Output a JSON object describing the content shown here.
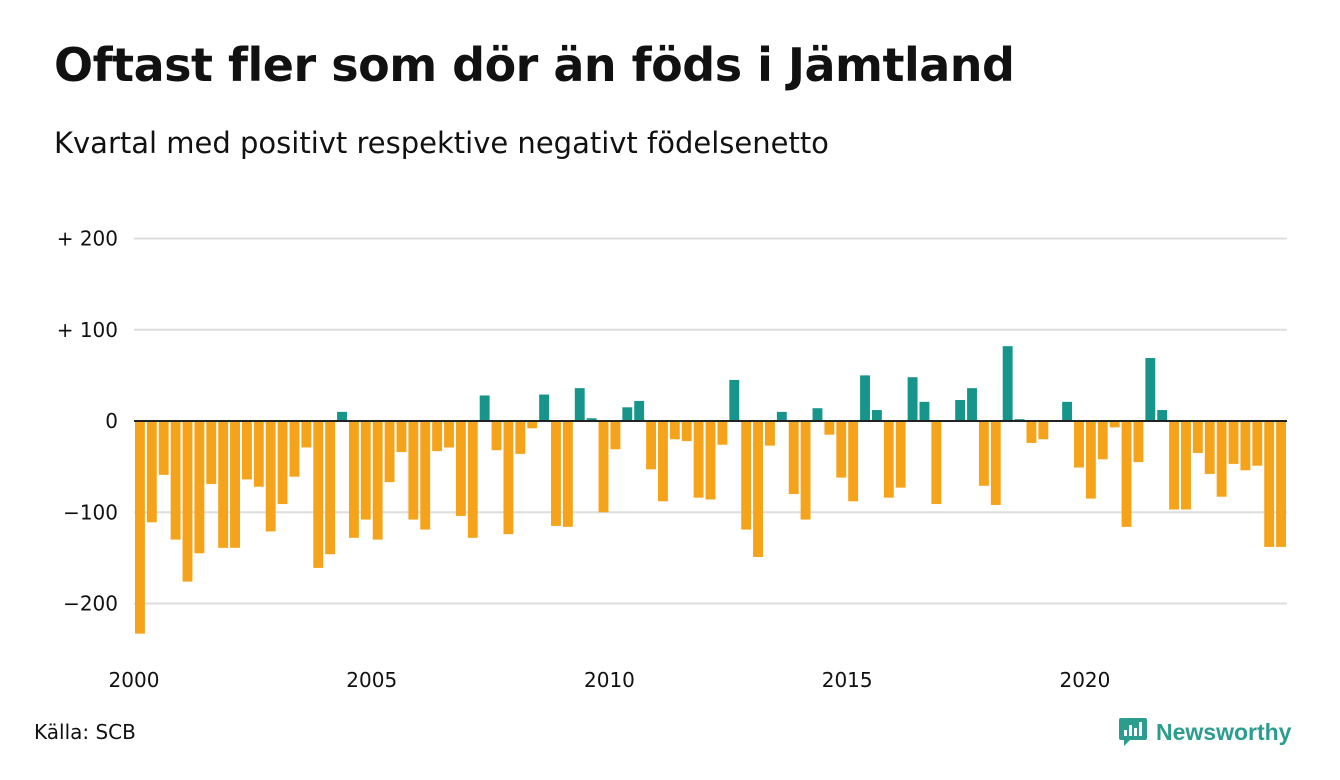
{
  "title": "Oftast fler som dör än föds i Jämtland",
  "subtitle": "Kvartal med positivt respektive negativt födelsenetto",
  "source": "Källa: SCB",
  "brand": "Newsworthy",
  "colors": {
    "positive": "#16968a",
    "negative": "#f5a31a",
    "grid": "#dddddd",
    "zero": "#222222",
    "brand": "#2a9d8f"
  },
  "chart_data": {
    "type": "bar",
    "title": "Oftast fler som dör än föds i Jämtland",
    "subtitle": "Kvartal med positivt respektive negativt födelsenetto",
    "xlabel": "",
    "ylabel": "",
    "ylim": [
      -250,
      200
    ],
    "xlim": [
      2000,
      2024.25
    ],
    "y_ticks": [
      {
        "value": 200,
        "label": "+ 200"
      },
      {
        "value": 100,
        "label": "+ 100"
      },
      {
        "value": 0,
        "label": "0"
      },
      {
        "value": -100,
        "label": "−100"
      },
      {
        "value": -200,
        "label": "−200"
      }
    ],
    "x_ticks": [
      {
        "value": 2000,
        "label": "2000"
      },
      {
        "value": 2005,
        "label": "2005"
      },
      {
        "value": 2010,
        "label": "2010"
      },
      {
        "value": 2015,
        "label": "2015"
      },
      {
        "value": 2020,
        "label": "2020"
      }
    ],
    "grid": true,
    "legend": "none",
    "series": [
      {
        "quarters": [
          "2000 Q1",
          "2000 Q2",
          "2000 Q3",
          "2000 Q4",
          "2001 Q1",
          "2001 Q2",
          "2001 Q3",
          "2001 Q4",
          "2002 Q1",
          "2002 Q2",
          "2002 Q3",
          "2002 Q4",
          "2003 Q1",
          "2003 Q2",
          "2003 Q3",
          "2003 Q4",
          "2004 Q1",
          "2004 Q2",
          "2004 Q3",
          "2004 Q4",
          "2005 Q1",
          "2005 Q2",
          "2005 Q3",
          "2005 Q4",
          "2006 Q1",
          "2006 Q2",
          "2006 Q3",
          "2006 Q4",
          "2007 Q1",
          "2007 Q2",
          "2007 Q3",
          "2007 Q4",
          "2008 Q1",
          "2008 Q2",
          "2008 Q3",
          "2008 Q4",
          "2009 Q1",
          "2009 Q2",
          "2009 Q3",
          "2009 Q4",
          "2010 Q1",
          "2010 Q2",
          "2010 Q3",
          "2010 Q4",
          "2011 Q1",
          "2011 Q2",
          "2011 Q3",
          "2011 Q4",
          "2012 Q1",
          "2012 Q2",
          "2012 Q3",
          "2012 Q4",
          "2013 Q1",
          "2013 Q2",
          "2013 Q3",
          "2013 Q4",
          "2014 Q1",
          "2014 Q2",
          "2014 Q3",
          "2014 Q4",
          "2015 Q1",
          "2015 Q2",
          "2015 Q3",
          "2015 Q4",
          "2016 Q1",
          "2016 Q2",
          "2016 Q3",
          "2016 Q4",
          "2017 Q1",
          "2017 Q2",
          "2017 Q3",
          "2017 Q4",
          "2018 Q1",
          "2018 Q2",
          "2018 Q3",
          "2018 Q4",
          "2019 Q1",
          "2019 Q2",
          "2019 Q3",
          "2019 Q4",
          "2020 Q1",
          "2020 Q2",
          "2020 Q3",
          "2020 Q4",
          "2021 Q1",
          "2021 Q2",
          "2021 Q3",
          "2021 Q4",
          "2022 Q1",
          "2022 Q2",
          "2022 Q3",
          "2022 Q4",
          "2023 Q1",
          "2023 Q2",
          "2023 Q3",
          "2023 Q4",
          "2024 Q1"
        ],
        "values": [
          -233,
          -111,
          -59,
          -130,
          -176,
          -145,
          -69,
          -139,
          -139,
          -64,
          -72,
          -121,
          -91,
          -61,
          -29,
          -161,
          -146,
          10,
          -128,
          -108,
          -130,
          -67,
          -34,
          -108,
          -119,
          -33,
          -29,
          -104,
          -128,
          28,
          -32,
          -124,
          -36,
          -8,
          29,
          -115,
          -116,
          36,
          3,
          -100,
          -31,
          15,
          22,
          -53,
          -88,
          -20,
          -22,
          -84,
          -86,
          -26,
          45,
          -119,
          -149,
          -27,
          10,
          -80,
          -108,
          14,
          -15,
          -62,
          -88,
          50,
          12,
          -84,
          -73,
          48,
          21,
          -91,
          1,
          23,
          36,
          -71,
          -92,
          82,
          2,
          -24,
          -20,
          0,
          21,
          -51,
          -85,
          -42,
          -7,
          -116,
          -45,
          69,
          12,
          -97,
          -97,
          -35,
          -58,
          -83,
          -47,
          -54,
          -49,
          -138,
          -138
        ]
      }
    ]
  }
}
